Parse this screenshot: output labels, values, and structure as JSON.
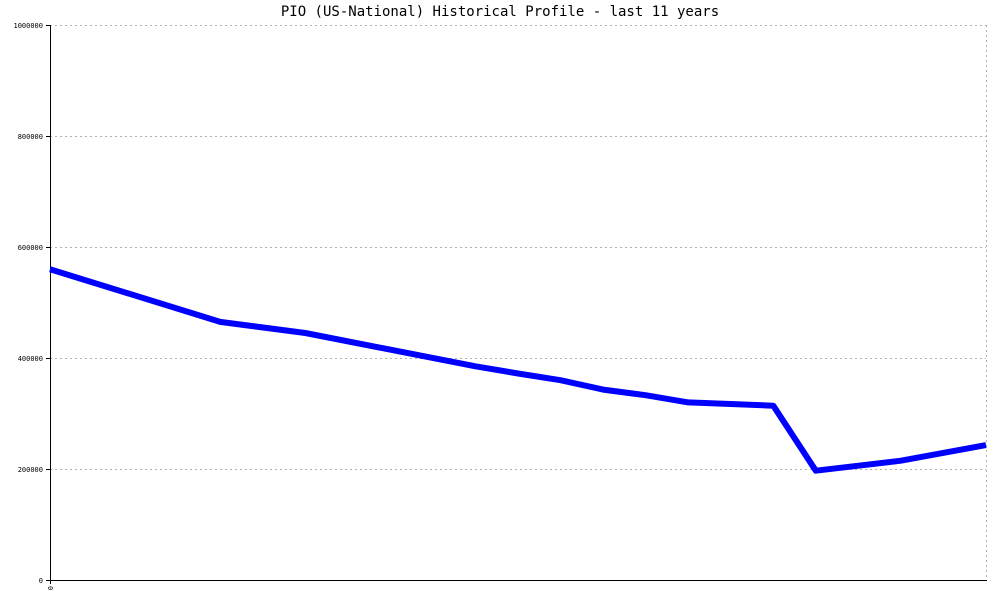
{
  "chart_data": {
    "type": "line",
    "title": "PIO (US-National) Historical Profile - last 11 years",
    "xlabel": "",
    "ylabel": "",
    "ylim": [
      0,
      1000000
    ],
    "yticks": [
      0,
      200000,
      400000,
      600000,
      800000,
      1000000
    ],
    "ytick_labels": [
      "0",
      "200000",
      "400000",
      "600000",
      "800000",
      "1000000"
    ],
    "xticks": [
      0
    ],
    "xtick_labels": [
      "0"
    ],
    "xlim": [
      0,
      22
    ],
    "grid": true,
    "legend": "none",
    "colors": {
      "line": "#0000ff",
      "grid": "#b0b0b0",
      "axis": "#000000"
    },
    "series": [
      {
        "x": [
          0,
          4,
          6,
          10,
          11,
          12,
          13,
          14,
          15,
          17,
          18,
          20,
          22
        ],
        "values": [
          560000,
          465000,
          445000,
          385000,
          372000,
          360000,
          343000,
          333000,
          320000,
          314000,
          197000,
          215000,
          243000
        ]
      }
    ]
  }
}
